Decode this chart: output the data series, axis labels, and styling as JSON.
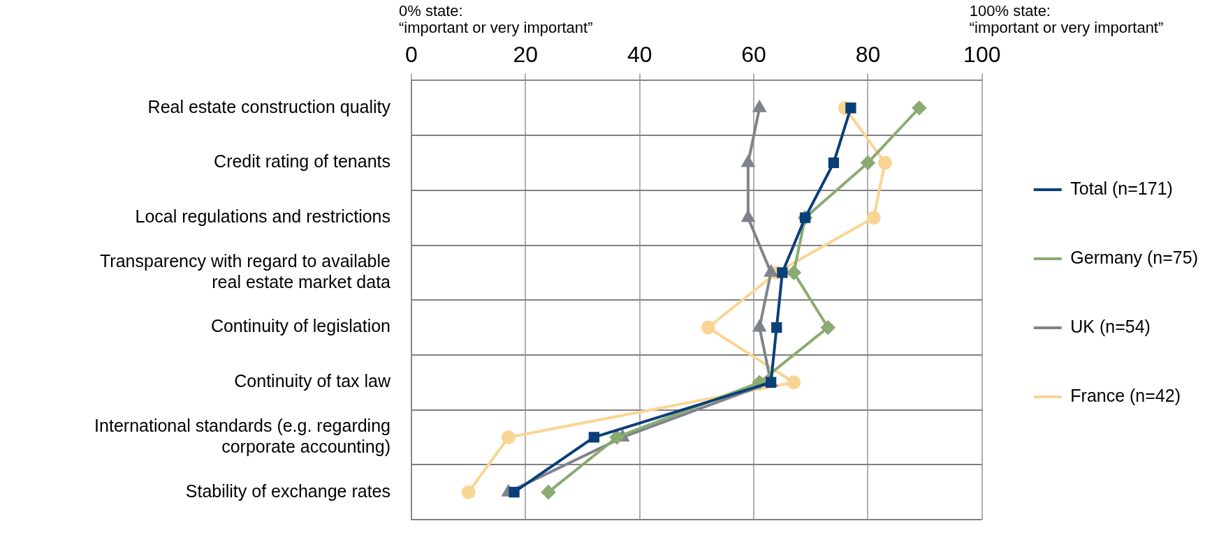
{
  "chart_data": {
    "type": "line",
    "orientation": "horizontal",
    "categories": [
      "Real estate construction quality",
      "Credit rating of tenants",
      "Local regulations and restrictions",
      "Transparency with regard to available real estate market data",
      "Continuity of legislation",
      "Continuity of tax law",
      "International standards (e.g. regarding corporate accounting)",
      "Stability of exchange rates"
    ],
    "series": [
      {
        "name": "Total (n=171)",
        "color": "#0b3f78",
        "marker": "square",
        "values": [
          77,
          74,
          69,
          65,
          64,
          63,
          32,
          18
        ]
      },
      {
        "name": "Germany (n=75)",
        "color": "#8aab72",
        "marker": "diamond",
        "values": [
          89,
          80,
          69,
          67,
          73,
          61,
          36,
          24
        ]
      },
      {
        "name": "UK (n=54)",
        "color": "#7f838b",
        "marker": "triangle",
        "values": [
          61,
          59,
          59,
          63,
          61,
          63,
          37,
          17
        ]
      },
      {
        "name": "France (n=42)",
        "color": "#f9d594",
        "marker": "circle",
        "values": [
          76,
          83,
          81,
          64,
          52,
          67,
          17,
          10
        ]
      }
    ],
    "xlim": [
      0,
      100
    ],
    "xticks": [
      0,
      20,
      40,
      60,
      80,
      100
    ],
    "annotations": [
      "0% state:\n“important or very important”",
      "100% state:\n“important or very important”"
    ],
    "grid": true,
    "legend": "right",
    "line_style": "solid"
  }
}
